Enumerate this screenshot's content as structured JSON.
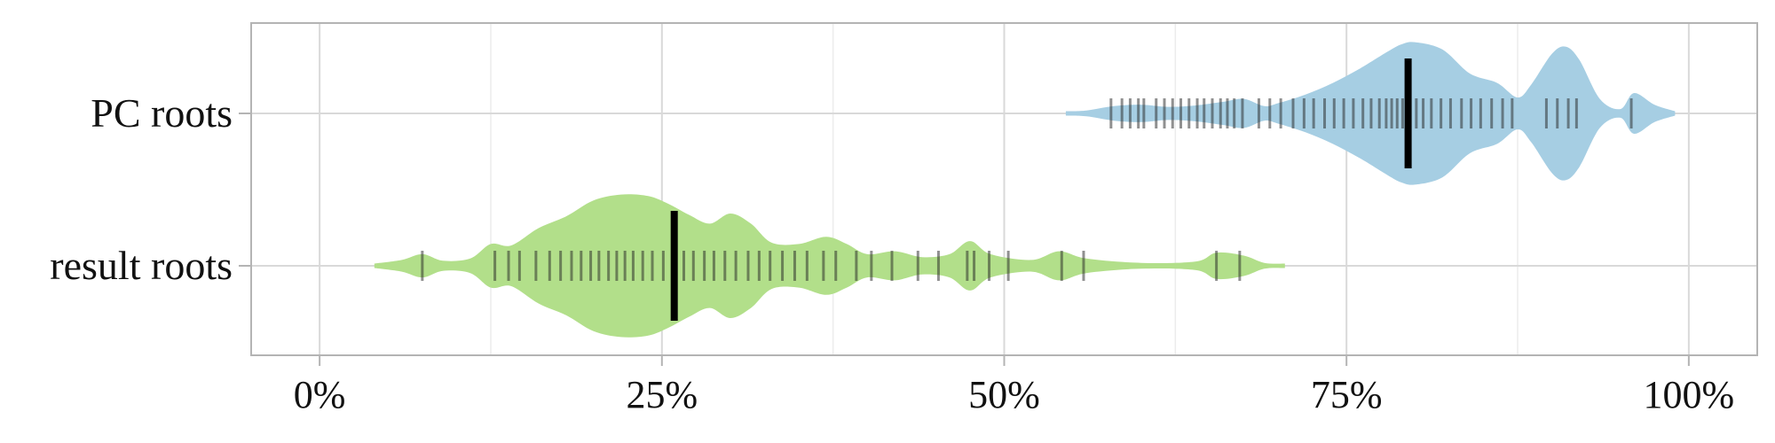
{
  "chart_data": {
    "type": "violin",
    "title": "",
    "xlabel": "",
    "ylabel": "",
    "xlim": [
      -0.05,
      1.05
    ],
    "x_ticks": [
      0,
      0.25,
      0.5,
      0.75,
      1.0
    ],
    "x_tick_labels": [
      "0%",
      "25%",
      "50%",
      "75%",
      "100%"
    ],
    "grid": true,
    "legend": "none",
    "categories": [
      "PC roots",
      "result roots"
    ],
    "series": [
      {
        "name": "PC roots",
        "color": "#a6cee3",
        "median": 0.795,
        "range": [
          0.545,
          0.99
        ],
        "density_profile": [
          [
            0.545,
            0.0
          ],
          [
            0.56,
            0.04
          ],
          [
            0.58,
            0.1
          ],
          [
            0.6,
            0.12
          ],
          [
            0.62,
            0.09
          ],
          [
            0.64,
            0.11
          ],
          [
            0.66,
            0.16
          ],
          [
            0.675,
            0.2
          ],
          [
            0.69,
            0.1
          ],
          [
            0.7,
            0.14
          ],
          [
            0.72,
            0.26
          ],
          [
            0.74,
            0.42
          ],
          [
            0.76,
            0.62
          ],
          [
            0.78,
            0.85
          ],
          [
            0.79,
            0.95
          ],
          [
            0.8,
            0.98
          ],
          [
            0.82,
            0.88
          ],
          [
            0.84,
            0.55
          ],
          [
            0.86,
            0.42
          ],
          [
            0.875,
            0.22
          ],
          [
            0.885,
            0.4
          ],
          [
            0.9,
            0.82
          ],
          [
            0.91,
            0.92
          ],
          [
            0.92,
            0.74
          ],
          [
            0.935,
            0.2
          ],
          [
            0.95,
            0.06
          ],
          [
            0.96,
            0.28
          ],
          [
            0.975,
            0.12
          ],
          [
            0.99,
            0.0
          ]
        ],
        "points": [
          0.578,
          0.586,
          0.592,
          0.598,
          0.602,
          0.611,
          0.617,
          0.623,
          0.629,
          0.635,
          0.641,
          0.646,
          0.652,
          0.658,
          0.663,
          0.668,
          0.674,
          0.686,
          0.694,
          0.702,
          0.711,
          0.719,
          0.726,
          0.734,
          0.741,
          0.748,
          0.755,
          0.762,
          0.768,
          0.774,
          0.779,
          0.783,
          0.787,
          0.791,
          0.796,
          0.801,
          0.806,
          0.812,
          0.819,
          0.826,
          0.834,
          0.841,
          0.848,
          0.856,
          0.864,
          0.871,
          0.896,
          0.904,
          0.912,
          0.918,
          0.958
        ]
      },
      {
        "name": "result roots",
        "color": "#b2df8a",
        "median": 0.259,
        "range": [
          0.04,
          0.705
        ],
        "density_profile": [
          [
            0.04,
            0.0
          ],
          [
            0.06,
            0.08
          ],
          [
            0.075,
            0.16
          ],
          [
            0.09,
            0.07
          ],
          [
            0.11,
            0.1
          ],
          [
            0.125,
            0.3
          ],
          [
            0.14,
            0.28
          ],
          [
            0.16,
            0.52
          ],
          [
            0.18,
            0.68
          ],
          [
            0.2,
            0.9
          ],
          [
            0.22,
            0.98
          ],
          [
            0.24,
            0.96
          ],
          [
            0.255,
            0.85
          ],
          [
            0.27,
            0.7
          ],
          [
            0.285,
            0.58
          ],
          [
            0.3,
            0.72
          ],
          [
            0.315,
            0.58
          ],
          [
            0.33,
            0.32
          ],
          [
            0.35,
            0.3
          ],
          [
            0.37,
            0.4
          ],
          [
            0.385,
            0.3
          ],
          [
            0.4,
            0.16
          ],
          [
            0.42,
            0.2
          ],
          [
            0.44,
            0.12
          ],
          [
            0.46,
            0.16
          ],
          [
            0.475,
            0.34
          ],
          [
            0.49,
            0.16
          ],
          [
            0.52,
            0.08
          ],
          [
            0.54,
            0.2
          ],
          [
            0.56,
            0.1
          ],
          [
            0.6,
            0.04
          ],
          [
            0.64,
            0.06
          ],
          [
            0.655,
            0.18
          ],
          [
            0.675,
            0.14
          ],
          [
            0.69,
            0.04
          ],
          [
            0.705,
            0.0
          ]
        ],
        "points": [
          0.075,
          0.128,
          0.138,
          0.146,
          0.158,
          0.168,
          0.176,
          0.184,
          0.191,
          0.198,
          0.204,
          0.211,
          0.217,
          0.223,
          0.229,
          0.236,
          0.243,
          0.251,
          0.258,
          0.266,
          0.273,
          0.281,
          0.288,
          0.296,
          0.304,
          0.313,
          0.321,
          0.329,
          0.338,
          0.347,
          0.356,
          0.368,
          0.377,
          0.392,
          0.403,
          0.418,
          0.437,
          0.452,
          0.473,
          0.478,
          0.489,
          0.503,
          0.542,
          0.558,
          0.655,
          0.672
        ]
      }
    ]
  }
}
